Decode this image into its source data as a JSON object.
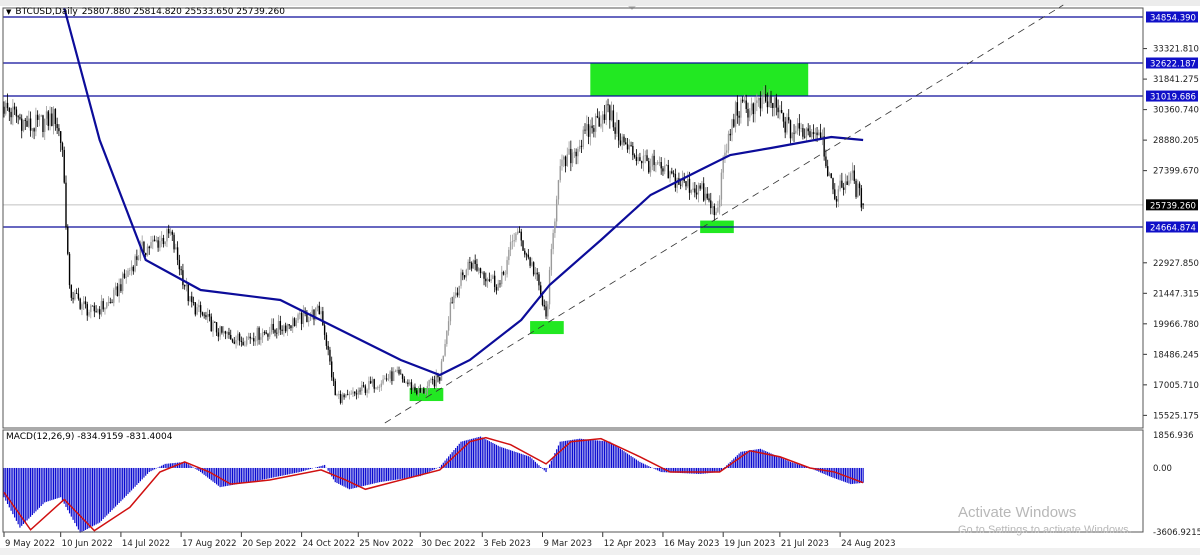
{
  "header": {
    "symbol": "BTCUSD,Daily",
    "ohlc": "25807.880 25814.820 25533.650 25739.260"
  },
  "macd_label": "MACD(12,26,9) -834.9159 -831.4004",
  "watermark": {
    "title": "Activate Windows",
    "subtitle": "Go to Settings to activate Windows."
  },
  "colors": {
    "line_blue": "#0c0c9a",
    "label_blue": "#1010c8",
    "zone_green": "#22e822",
    "signal_red": "#d01010",
    "histogram_blue": "#0a0ad0",
    "bear_candle": "#000000",
    "bull_candle": "#9a9a9a"
  },
  "chart_data": [
    {
      "type": "candlestick",
      "symbol": "BTCUSD",
      "timeframe": "Daily",
      "xlim": [
        "2022-05-09",
        "2024-02-11"
      ],
      "ylim": [
        14912,
        35291
      ],
      "grid": false,
      "x_ticks": [
        "9 May 2022",
        "10 Jun 2022",
        "14 Jul 2022",
        "17 Aug 2022",
        "20 Sep 2022",
        "24 Oct 2022",
        "25 Nov 2022",
        "30 Dec 2022",
        "3 Feb 2023",
        "9 Mar 2023",
        "12 Apr 2023",
        "16 May 2023",
        "19 Jun 2023",
        "21 Jul 2023",
        "24 Aug 2023"
      ],
      "x_tick_dates": [
        "2022-05-09",
        "2022-06-10",
        "2022-07-14",
        "2022-08-17",
        "2022-09-20",
        "2022-10-24",
        "2022-11-25",
        "2022-12-30",
        "2023-02-03",
        "2023-03-09",
        "2023-04-12",
        "2023-05-16",
        "2023-06-19",
        "2023-07-21",
        "2023-08-24"
      ],
      "y_ticks": [
        "33321.810",
        "31841.275",
        "30360.740",
        "28880.205",
        "27399.670",
        "22927.850",
        "21447.315",
        "19966.780",
        "18486.245",
        "17005.710",
        "15525.175"
      ],
      "close_path_approx": [
        [
          "2022-05-09",
          30500
        ],
        [
          "2022-05-24",
          29500
        ],
        [
          "2022-06-07",
          30000
        ],
        [
          "2022-06-11",
          28500
        ],
        [
          "2022-06-15",
          21500
        ],
        [
          "2022-06-27",
          20500
        ],
        [
          "2022-07-08",
          21000
        ],
        [
          "2022-07-25",
          23500
        ],
        [
          "2022-08-11",
          24300
        ],
        [
          "2022-08-22",
          21000
        ],
        [
          "2022-09-08",
          19500
        ],
        [
          "2022-09-19",
          19200
        ],
        [
          "2022-10-12",
          19800
        ],
        [
          "2022-11-04",
          20600
        ],
        [
          "2022-11-12",
          16500
        ],
        [
          "2022-11-18",
          16300
        ],
        [
          "2022-12-02",
          17000
        ],
        [
          "2022-12-16",
          17500
        ],
        [
          "2022-12-30",
          16600
        ],
        [
          "2023-01-10",
          17400
        ],
        [
          "2023-01-16",
          21000
        ],
        [
          "2023-01-27",
          23000
        ],
        [
          "2023-02-13",
          21800
        ],
        [
          "2023-02-22",
          24500
        ],
        [
          "2023-03-05",
          22400
        ],
        [
          "2023-03-11",
          20200
        ],
        [
          "2023-03-18",
          27300
        ],
        [
          "2023-03-28",
          28500
        ],
        [
          "2023-04-14",
          30400
        ],
        [
          "2023-04-25",
          28500
        ],
        [
          "2023-05-09",
          27700
        ],
        [
          "2023-05-26",
          26800
        ],
        [
          "2023-06-06",
          26500
        ],
        [
          "2023-06-15",
          25200
        ],
        [
          "2023-06-20",
          28200
        ],
        [
          "2023-06-26",
          30300
        ],
        [
          "2023-07-16",
          30700
        ],
        [
          "2023-07-27",
          29300
        ],
        [
          "2023-08-13",
          29400
        ],
        [
          "2023-08-20",
          26100
        ],
        [
          "2023-08-30",
          27200
        ],
        [
          "2023-09-06",
          25739.26
        ]
      ],
      "last_bar": {
        "open": 25807.88,
        "high": 25814.82,
        "low": 25533.65,
        "close": 25739.26
      },
      "current_price": 25739.26,
      "moving_average": [
        [
          "2022-06-12",
          35291
        ],
        [
          "2022-07-02",
          28886
        ],
        [
          "2022-07-28",
          23063
        ],
        [
          "2022-08-28",
          21608
        ],
        [
          "2022-10-12",
          21123
        ],
        [
          "2022-11-15",
          19667
        ],
        [
          "2022-12-19",
          18212
        ],
        [
          "2023-01-10",
          17484
        ],
        [
          "2023-01-27",
          18212
        ],
        [
          "2023-02-25",
          20153
        ],
        [
          "2023-03-13",
          21851
        ],
        [
          "2023-04-11",
          24034
        ],
        [
          "2023-05-09",
          26218
        ],
        [
          "2023-06-06",
          27431
        ],
        [
          "2023-06-23",
          28158
        ],
        [
          "2023-07-16",
          28498
        ],
        [
          "2023-08-19",
          29032
        ],
        [
          "2023-09-06",
          28886
        ]
      ],
      "horizontal_levels": [
        34854.39,
        32622.187,
        31019.686,
        24664.874
      ],
      "level_labels": [
        "34854.390",
        "32622.187",
        "31019.686",
        "24664.874"
      ],
      "current_price_label": "25739.260",
      "trendline": [
        [
          "2022-12-10",
          15155
        ],
        [
          "2023-12-28",
          35437
        ]
      ],
      "zones": [
        {
          "from": "2023-04-05",
          "to": "2023-08-06",
          "low": 31019.686,
          "high": 32622.187
        },
        {
          "from": "2023-06-06",
          "to": "2023-06-25",
          "low": 24370,
          "high": 24977
        },
        {
          "from": "2023-03-02",
          "to": "2023-03-21",
          "low": 19470,
          "high": 20100
        },
        {
          "from": "2022-12-24",
          "to": "2023-01-12",
          "low": 16220,
          "high": 16850
        }
      ]
    },
    {
      "type": "bar+line",
      "indicator": "MACD(12,26,9)",
      "main_value": -834.9159,
      "signal_value": -831.4004,
      "ylim": [
        -3606.9215,
        1856.936
      ],
      "y_ticks": [
        "1856.936",
        "0.00",
        "-3606.9215"
      ],
      "histogram": [
        [
          "2022-05-09",
          -1650
        ],
        [
          "2022-05-18",
          -3360
        ],
        [
          "2022-06-01",
          -1940
        ],
        [
          "2022-06-10",
          -1650
        ],
        [
          "2022-06-21",
          -3650
        ],
        [
          "2022-07-02",
          -3080
        ],
        [
          "2022-07-19",
          -1370
        ],
        [
          "2022-07-30",
          -230
        ],
        [
          "2022-08-08",
          230
        ],
        [
          "2022-08-19",
          340
        ],
        [
          "2022-08-28",
          -230
        ],
        [
          "2022-09-08",
          -1080
        ],
        [
          "2022-10-01",
          -680
        ],
        [
          "2022-10-23",
          -230
        ],
        [
          "2022-11-06",
          170
        ],
        [
          "2022-11-12",
          -800
        ],
        [
          "2022-11-20",
          -1200
        ],
        [
          "2022-12-07",
          -800
        ],
        [
          "2022-12-30",
          -460
        ],
        [
          "2023-01-10",
          60
        ],
        [
          "2023-01-22",
          1480
        ],
        [
          "2023-02-02",
          1770
        ],
        [
          "2023-02-13",
          1200
        ],
        [
          "2023-03-02",
          630
        ],
        [
          "2023-03-11",
          -230
        ],
        [
          "2023-03-19",
          1480
        ],
        [
          "2023-03-30",
          1650
        ],
        [
          "2023-04-16",
          1480
        ],
        [
          "2023-05-03",
          340
        ],
        [
          "2023-05-15",
          -230
        ],
        [
          "2023-06-06",
          -340
        ],
        [
          "2023-06-17",
          -230
        ],
        [
          "2023-06-29",
          910
        ],
        [
          "2023-07-10",
          1080
        ],
        [
          "2023-07-27",
          340
        ],
        [
          "2023-08-07",
          0
        ],
        [
          "2023-08-19",
          -510
        ],
        [
          "2023-08-30",
          -910
        ],
        [
          "2023-09-06",
          -834.9159
        ]
      ],
      "signal": [
        [
          "2022-05-09",
          -1370
        ],
        [
          "2022-05-24",
          -3480
        ],
        [
          "2022-06-12",
          -1770
        ],
        [
          "2022-06-29",
          -3530
        ],
        [
          "2022-07-19",
          -2220
        ],
        [
          "2022-08-05",
          -230
        ],
        [
          "2022-08-19",
          340
        ],
        [
          "2022-09-02",
          -230
        ],
        [
          "2022-09-14",
          -910
        ],
        [
          "2022-10-06",
          -680
        ],
        [
          "2022-11-04",
          -110
        ],
        [
          "2022-11-18",
          -680
        ],
        [
          "2022-11-29",
          -1200
        ],
        [
          "2022-12-19",
          -680
        ],
        [
          "2023-01-10",
          -110
        ],
        [
          "2023-01-27",
          1480
        ],
        [
          "2023-02-05",
          1710
        ],
        [
          "2023-02-19",
          1310
        ],
        [
          "2023-03-11",
          230
        ],
        [
          "2023-03-25",
          1480
        ],
        [
          "2023-04-11",
          1650
        ],
        [
          "2023-05-03",
          630
        ],
        [
          "2023-05-20",
          -230
        ],
        [
          "2023-06-17",
          -230
        ],
        [
          "2023-07-04",
          970
        ],
        [
          "2023-07-21",
          630
        ],
        [
          "2023-08-07",
          0
        ],
        [
          "2023-08-21",
          -230
        ],
        [
          "2023-09-06",
          -831.4004
        ]
      ]
    }
  ]
}
